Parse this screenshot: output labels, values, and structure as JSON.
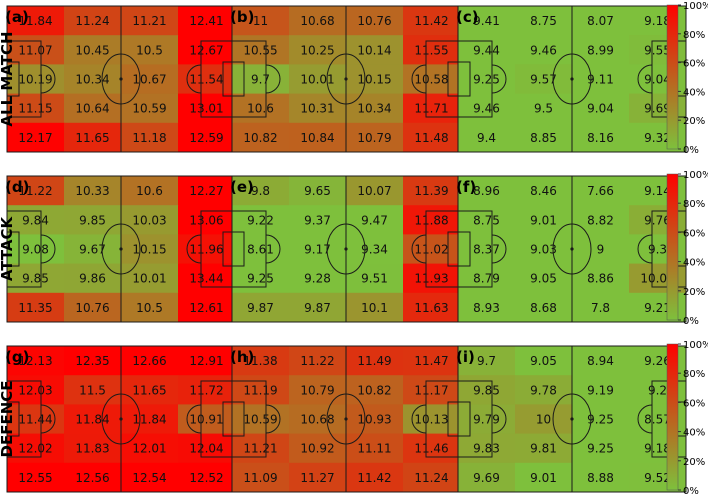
{
  "row_labels": [
    "ALL MATCH",
    "ATTACK",
    "DEFENCE"
  ],
  "colorbar": {
    "ticks": [
      "0%",
      "20%",
      "40%",
      "60%",
      "80%",
      "100%"
    ],
    "color_low": "#7ec03c",
    "color_high": "#ff0000"
  },
  "chart_data": [
    {
      "type": "heatmap",
      "label": "(a)",
      "scale": [
        9.5,
        12.2
      ],
      "values": [
        [
          11.84,
          11.24,
          11.21,
          12.41
        ],
        [
          11.07,
          10.45,
          10.5,
          12.67
        ],
        [
          10.19,
          10.34,
          10.67,
          11.54
        ],
        [
          11.15,
          10.64,
          10.59,
          13.01
        ],
        [
          12.17,
          11.65,
          11.18,
          12.59
        ]
      ]
    },
    {
      "type": "heatmap",
      "label": "(b)",
      "scale": [
        9.5,
        12.2
      ],
      "values": [
        [
          11.0,
          10.68,
          10.76,
          11.42
        ],
        [
          10.55,
          10.25,
          10.14,
          11.55
        ],
        [
          9.7,
          10.01,
          10.15,
          10.58
        ],
        [
          10.6,
          10.31,
          10.34,
          11.71
        ],
        [
          10.82,
          10.84,
          10.79,
          11.48
        ]
      ]
    },
    {
      "type": "heatmap",
      "label": "(c)",
      "scale": [
        9.5,
        12.2
      ],
      "values": [
        [
          9.41,
          8.75,
          8.07,
          9.18
        ],
        [
          9.44,
          9.46,
          8.99,
          9.55
        ],
        [
          9.25,
          9.57,
          9.11,
          9.04
        ],
        [
          9.46,
          9.5,
          9.04,
          9.69
        ],
        [
          9.4,
          8.85,
          8.16,
          9.32
        ]
      ]
    },
    {
      "type": "heatmap",
      "label": "(d)",
      "scale": [
        9.5,
        12.2
      ],
      "values": [
        [
          11.22,
          10.33,
          10.6,
          12.27
        ],
        [
          9.84,
          9.85,
          10.03,
          13.06
        ],
        [
          9.08,
          9.67,
          10.15,
          11.96
        ],
        [
          9.85,
          9.86,
          10.01,
          13.44
        ],
        [
          11.35,
          10.76,
          10.5,
          12.61
        ]
      ]
    },
    {
      "type": "heatmap",
      "label": "(e)",
      "scale": [
        9.5,
        12.2
      ],
      "values": [
        [
          9.8,
          9.65,
          10.07,
          11.39
        ],
        [
          9.22,
          9.37,
          9.47,
          11.88
        ],
        [
          8.61,
          9.17,
          9.34,
          11.02
        ],
        [
          9.25,
          9.28,
          9.51,
          11.93
        ],
        [
          9.87,
          9.87,
          10.1,
          11.63
        ]
      ]
    },
    {
      "type": "heatmap",
      "label": "(f)",
      "scale": [
        9.5,
        12.2
      ],
      "values": [
        [
          8.96,
          8.46,
          7.66,
          9.14
        ],
        [
          8.75,
          9.01,
          8.82,
          9.76
        ],
        [
          8.37,
          9.03,
          9.0,
          9.3
        ],
        [
          8.79,
          9.05,
          8.86,
          10.02
        ],
        [
          8.93,
          8.68,
          7.8,
          9.21
        ]
      ]
    },
    {
      "type": "heatmap",
      "label": "(g)",
      "scale": [
        9.5,
        12.2
      ],
      "values": [
        [
          12.13,
          12.35,
          12.66,
          12.91
        ],
        [
          12.03,
          11.5,
          11.65,
          11.72
        ],
        [
          11.44,
          11.84,
          11.84,
          10.91
        ],
        [
          12.02,
          11.83,
          12.01,
          12.04
        ],
        [
          12.55,
          12.56,
          12.54,
          12.52
        ]
      ]
    },
    {
      "type": "heatmap",
      "label": "(h)",
      "scale": [
        9.5,
        12.2
      ],
      "values": [
        [
          11.38,
          11.22,
          11.49,
          11.47
        ],
        [
          11.19,
          10.79,
          10.82,
          11.17
        ],
        [
          10.59,
          10.68,
          10.93,
          10.13
        ],
        [
          11.21,
          10.92,
          11.11,
          11.46
        ],
        [
          11.09,
          11.27,
          11.42,
          11.24
        ]
      ]
    },
    {
      "type": "heatmap",
      "label": "(i)",
      "scale": [
        9.5,
        12.2
      ],
      "values": [
        [
          9.7,
          9.05,
          8.94,
          9.26
        ],
        [
          9.85,
          9.78,
          9.19,
          9.2
        ],
        [
          9.79,
          10.0,
          9.25,
          8.57
        ],
        [
          9.83,
          9.81,
          9.25,
          9.18
        ],
        [
          9.69,
          9.01,
          8.88,
          9.52
        ]
      ]
    }
  ]
}
